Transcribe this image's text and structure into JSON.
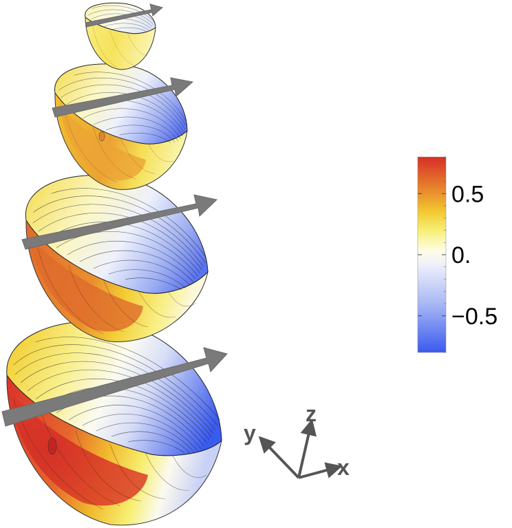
{
  "colorbar": {
    "ticks": [
      {
        "value": 0.5,
        "label": "0.5"
      },
      {
        "value": 0.0,
        "label": "0."
      },
      {
        "value": -0.5,
        "label": "−0.5"
      }
    ],
    "range": [
      -0.8,
      0.8
    ],
    "colors": [
      "#3a5bef",
      "#c8d2f8",
      "#ffffff",
      "#f6f17a",
      "#f2c530",
      "#e5782c",
      "#d93228"
    ]
  },
  "axes": {
    "x_label": "x",
    "y_label": "y",
    "z_label": "z"
  },
  "colors": {
    "arrow": "#7a7a7a",
    "axis_triad": "#555555",
    "positive": "#d93228",
    "negative": "#3a5bef",
    "neutral": "#ffffff"
  }
}
